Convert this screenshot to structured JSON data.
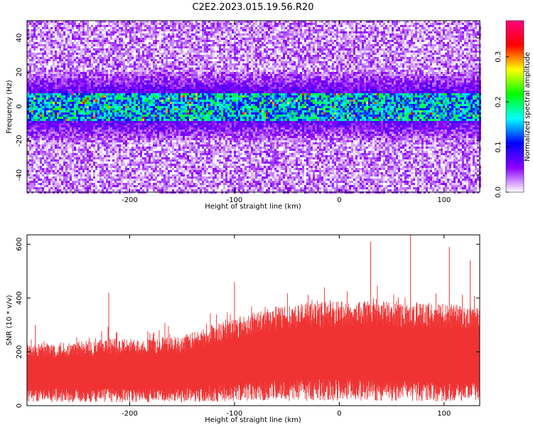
{
  "title": "C2E2.2023.015.19.56.R20",
  "chart_data": [
    {
      "type": "heatmap",
      "xlabel": "Height of straight line (km)",
      "ylabel": "Frequency (Hz)",
      "xlim": [
        -298,
        134
      ],
      "ylim": [
        -50,
        50
      ],
      "xticks": [
        -200,
        -100,
        0,
        100
      ],
      "yticks": [
        -40,
        -20,
        0,
        20,
        40
      ],
      "colorbar": {
        "label": "Normalized spectral amplitude",
        "range": [
          0,
          0.38
        ],
        "ticks": [
          0.0,
          0.1,
          0.2,
          0.3
        ],
        "colormap": [
          "#ffffff",
          "#8a00ff",
          "#0000ff",
          "#00ffff",
          "#00ff00",
          "#ffff00",
          "#ff0000",
          "#ff0080"
        ]
      },
      "signal_band_hz": [
        -8,
        8
      ]
    },
    {
      "type": "area",
      "xlabel": "Height of straight line (km)",
      "ylabel": "SNR (10 * v/v)",
      "xlim": [
        -298,
        134
      ],
      "ylim": [
        0,
        635
      ],
      "xticks": [
        -200,
        -100,
        0,
        100
      ],
      "yticks": [
        0,
        200,
        400,
        600
      ],
      "color": "#f03232",
      "x": [
        -298,
        -250,
        -200,
        -150,
        -100,
        -50,
        0,
        50,
        100,
        134
      ],
      "envelope_low": [
        60,
        60,
        60,
        60,
        80,
        90,
        90,
        85,
        80,
        80
      ],
      "envelope_high": [
        230,
        240,
        250,
        260,
        330,
        380,
        390,
        390,
        380,
        370
      ],
      "peaks": [
        {
          "x": -290,
          "y": 300
        },
        {
          "x": -220,
          "y": 420
        },
        {
          "x": -100,
          "y": 460
        },
        {
          "x": 30,
          "y": 610
        },
        {
          "x": 68,
          "y": 635
        },
        {
          "x": 105,
          "y": 590
        },
        {
          "x": 125,
          "y": 540
        }
      ]
    }
  ]
}
